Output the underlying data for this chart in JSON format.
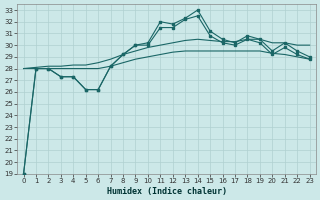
{
  "xlabel": "Humidex (Indice chaleur)",
  "xlim": [
    -0.5,
    23.5
  ],
  "ylim": [
    19,
    33.5
  ],
  "yticks": [
    19,
    20,
    21,
    22,
    23,
    24,
    25,
    26,
    27,
    28,
    29,
    30,
    31,
    32,
    33
  ],
  "xticks": [
    0,
    1,
    2,
    3,
    4,
    5,
    6,
    7,
    8,
    9,
    10,
    11,
    12,
    13,
    14,
    15,
    16,
    17,
    18,
    19,
    20,
    21,
    22,
    23
  ],
  "bg_color": "#cce8e8",
  "grid_color": "#b0d0d0",
  "line_color": "#1a6666",
  "line1_x": [
    0,
    1,
    2,
    3,
    4,
    5,
    6,
    7,
    8,
    9,
    10,
    11,
    12,
    13,
    14,
    15,
    16,
    17,
    18,
    19,
    20,
    21,
    22,
    23
  ],
  "line1_y": [
    19,
    28,
    28,
    27.3,
    27.3,
    26.2,
    26.2,
    28.2,
    29.2,
    30.0,
    30.2,
    32.0,
    31.8,
    32.3,
    33.0,
    31.2,
    30.5,
    30.2,
    30.8,
    30.5,
    29.5,
    30.2,
    29.5,
    29.0
  ],
  "line2_x": [
    0,
    1,
    2,
    3,
    4,
    5,
    6,
    7,
    8,
    9,
    10,
    11,
    12,
    13,
    14,
    15,
    16,
    17,
    18,
    19,
    20,
    21,
    22,
    23
  ],
  "line2_y": [
    19,
    28,
    28,
    27.3,
    27.3,
    26.2,
    26.2,
    28.2,
    29.2,
    30.0,
    30.0,
    31.5,
    31.5,
    32.2,
    32.5,
    30.8,
    30.2,
    30.0,
    30.5,
    30.2,
    29.2,
    29.8,
    29.2,
    28.8
  ],
  "line3_x": [
    0,
    1,
    2,
    3,
    4,
    5,
    6,
    7,
    8,
    9,
    10,
    11,
    12,
    13,
    14,
    15,
    16,
    17,
    18,
    19,
    20,
    21,
    22,
    23
  ],
  "line3_y": [
    28.0,
    28.1,
    28.2,
    28.2,
    28.3,
    28.3,
    28.5,
    28.8,
    29.2,
    29.5,
    29.8,
    30.0,
    30.2,
    30.4,
    30.5,
    30.4,
    30.3,
    30.3,
    30.5,
    30.5,
    30.2,
    30.2,
    30.0,
    30.0
  ],
  "line4_x": [
    0,
    1,
    2,
    3,
    4,
    5,
    6,
    7,
    8,
    9,
    10,
    11,
    12,
    13,
    14,
    15,
    16,
    17,
    18,
    19,
    20,
    21,
    22,
    23
  ],
  "line4_y": [
    28.0,
    28.0,
    28.0,
    28.0,
    28.0,
    28.0,
    28.0,
    28.2,
    28.5,
    28.8,
    29.0,
    29.2,
    29.4,
    29.5,
    29.5,
    29.5,
    29.5,
    29.5,
    29.5,
    29.5,
    29.3,
    29.2,
    29.0,
    28.8
  ],
  "tick_fontsize": 5,
  "xlabel_fontsize": 6
}
